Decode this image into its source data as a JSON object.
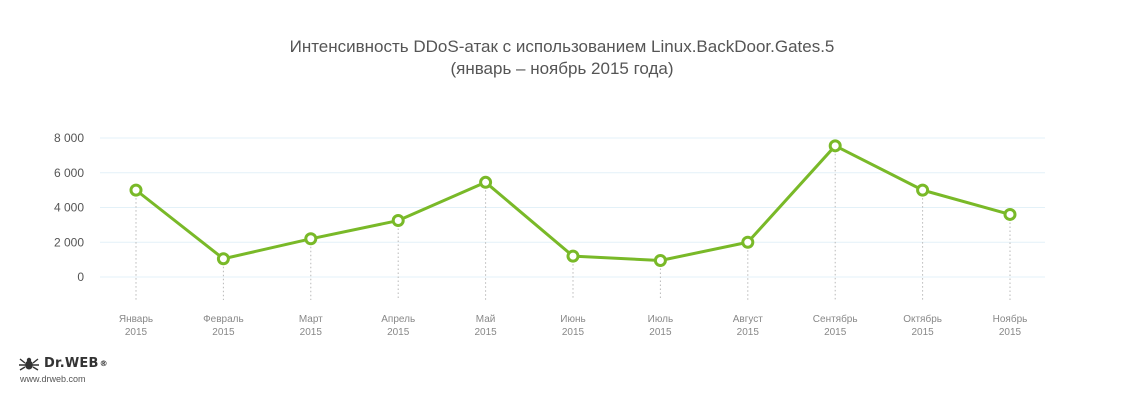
{
  "chart_data": {
    "type": "line",
    "title_line1": "Интенсивность DDoS-атак с использованием Linux.BackDoor.Gates.5",
    "title_line2": "(январь – ноябрь 2015 года)",
    "categories": [
      [
        "Январь",
        "2015"
      ],
      [
        "Февраль",
        "2015"
      ],
      [
        "Март",
        "2015"
      ],
      [
        "Апрель",
        "2015"
      ],
      [
        "Май",
        "2015"
      ],
      [
        "Июнь",
        "2015"
      ],
      [
        "Июль",
        "2015"
      ],
      [
        "Август",
        "2015"
      ],
      [
        "Сентябрь",
        "2015"
      ],
      [
        "Октябрь",
        "2015"
      ],
      [
        "Ноябрь",
        "2015"
      ]
    ],
    "series": [
      {
        "values": [
          5000,
          1050,
          2200,
          3250,
          5450,
          1200,
          950,
          2000,
          7550,
          5000,
          3600
        ],
        "color": "#79b928"
      }
    ],
    "yticks": [
      0,
      2000,
      4000,
      6000,
      8000
    ],
    "ytick_labels": [
      "0",
      "2 000",
      "4 000",
      "6 000",
      "8 000"
    ],
    "ylim": [
      0,
      8000
    ],
    "grid": true,
    "legend": "none"
  },
  "branding": {
    "logo_text": "Dr.WEB",
    "registered": "®",
    "url": "www.drweb.com"
  }
}
